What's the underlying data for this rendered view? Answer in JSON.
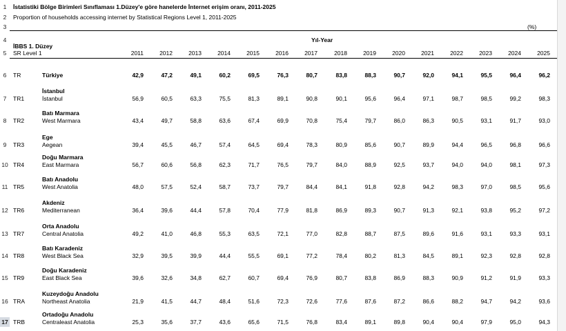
{
  "title": "İstatistiki Bölge Birimleri Sınıflaması 1.Düzey'e göre hanelerde İnternet erişim oranı, 2011-2025",
  "subtitle": "Proportion of households accessing internet by Statistical Regions Level 1, 2011-2025",
  "unit": "(%)",
  "header": {
    "col_group": "Yıl-Year",
    "region_tr": "İBBS 1. Düzey",
    "region_en": "SR Level 1",
    "years": [
      "2011",
      "2012",
      "2013",
      "2014",
      "2015",
      "2016",
      "2017",
      "2018",
      "2019",
      "2020",
      "2021",
      "2022",
      "2023",
      "2024",
      "2025"
    ]
  },
  "row_numbers": [
    "1",
    "2",
    "3",
    "4",
    "5",
    "6",
    "7",
    "8",
    "9",
    "10",
    "11",
    "12",
    "13",
    "14",
    "15",
    "16",
    "17"
  ],
  "selected_row": "17",
  "rows": [
    {
      "code": "TR",
      "name_tr": "Türkiye",
      "name_en": "",
      "bold": true,
      "values": [
        "42,9",
        "47,2",
        "49,1",
        "60,2",
        "69,5",
        "76,3",
        "80,7",
        "83,8",
        "88,3",
        "90,7",
        "92,0",
        "94,1",
        "95,5",
        "96,4",
        "96,2"
      ]
    },
    {
      "code": "TR1",
      "name_tr": "İstanbul",
      "name_en": "İstanbul",
      "bold": false,
      "values": [
        "56,9",
        "60,5",
        "63,3",
        "75,5",
        "81,3",
        "89,1",
        "90,8",
        "90,1",
        "95,6",
        "96,4",
        "97,1",
        "98,7",
        "98,5",
        "99,2",
        "98,3"
      ]
    },
    {
      "code": "TR2",
      "name_tr": "Batı Marmara",
      "name_en": "West Marmara",
      "bold": false,
      "values": [
        "43,4",
        "49,7",
        "58,8",
        "63,6",
        "67,4",
        "69,9",
        "70,8",
        "75,4",
        "79,7",
        "86,0",
        "86,3",
        "90,5",
        "93,1",
        "91,7",
        "93,0"
      ]
    },
    {
      "code": "TR3",
      "name_tr": "Ege",
      "name_en": "Aegean",
      "bold": false,
      "values": [
        "39,4",
        "45,5",
        "46,7",
        "57,4",
        "64,5",
        "69,4",
        "78,3",
        "80,9",
        "85,6",
        "90,7",
        "89,9",
        "94,4",
        "96,5",
        "96,8",
        "96,6"
      ]
    },
    {
      "code": "TR4",
      "name_tr": "Doğu Marmara",
      "name_en": "East Marmara",
      "bold": false,
      "values": [
        "56,7",
        "60,6",
        "56,8",
        "62,3",
        "71,7",
        "76,5",
        "79,7",
        "84,0",
        "88,9",
        "92,5",
        "93,7",
        "94,0",
        "94,0",
        "98,1",
        "97,3"
      ]
    },
    {
      "code": "TR5",
      "name_tr": "Batı Anadolu",
      "name_en": "West Anatolia",
      "bold": false,
      "values": [
        "48,0",
        "57,5",
        "52,4",
        "58,7",
        "73,7",
        "79,7",
        "84,4",
        "84,1",
        "91,8",
        "92,8",
        "94,2",
        "98,3",
        "97,0",
        "98,5",
        "95,6"
      ]
    },
    {
      "code": "TR6",
      "name_tr": "Akdeniz",
      "name_en": "Mediterranean",
      "bold": false,
      "values": [
        "36,4",
        "39,6",
        "44,4",
        "57,8",
        "70,4",
        "77,9",
        "81,8",
        "86,9",
        "89,3",
        "90,7",
        "91,3",
        "92,1",
        "93,8",
        "95,2",
        "97,2"
      ]
    },
    {
      "code": "TR7",
      "name_tr": "Orta Anadolu",
      "name_en": "Central Anatolia",
      "bold": false,
      "values": [
        "49,2",
        "41,0",
        "46,8",
        "55,3",
        "63,5",
        "72,1",
        "77,0",
        "82,8",
        "88,7",
        "87,5",
        "89,6",
        "91,6",
        "93,1",
        "93,3",
        "93,1"
      ]
    },
    {
      "code": "TR8",
      "name_tr": "Batı Karadeniz",
      "name_en": "West Black Sea",
      "bold": false,
      "values": [
        "32,9",
        "39,5",
        "39,9",
        "44,4",
        "55,5",
        "69,1",
        "77,2",
        "78,4",
        "80,2",
        "81,3",
        "84,5",
        "89,1",
        "92,3",
        "92,8",
        "92,8"
      ]
    },
    {
      "code": "TR9",
      "name_tr": "Doğu Karadeniz",
      "name_en": "East Black Sea",
      "bold": false,
      "values": [
        "39,6",
        "32,6",
        "34,8",
        "62,7",
        "60,7",
        "69,4",
        "76,9",
        "80,7",
        "83,8",
        "86,9",
        "88,3",
        "90,9",
        "91,2",
        "91,9",
        "93,3"
      ]
    },
    {
      "code": "TRA",
      "name_tr": "Kuzeydoğu Anadolu",
      "name_en": "Northeast Anatolia",
      "bold": false,
      "values": [
        "21,9",
        "41,5",
        "44,7",
        "48,4",
        "51,6",
        "72,3",
        "72,6",
        "77,6",
        "87,6",
        "87,2",
        "86,6",
        "88,2",
        "94,7",
        "94,2",
        "93,6"
      ]
    },
    {
      "code": "TRB",
      "name_tr": "Ortadoğu Anadolu",
      "name_en": "Centraleast Anatolia",
      "bold": false,
      "values": [
        "25,3",
        "35,6",
        "37,7",
        "43,6",
        "65,6",
        "71,5",
        "76,8",
        "83,4",
        "89,1",
        "89,8",
        "90,4",
        "90,4",
        "97,9",
        "95,0",
        "94,3"
      ]
    }
  ]
}
